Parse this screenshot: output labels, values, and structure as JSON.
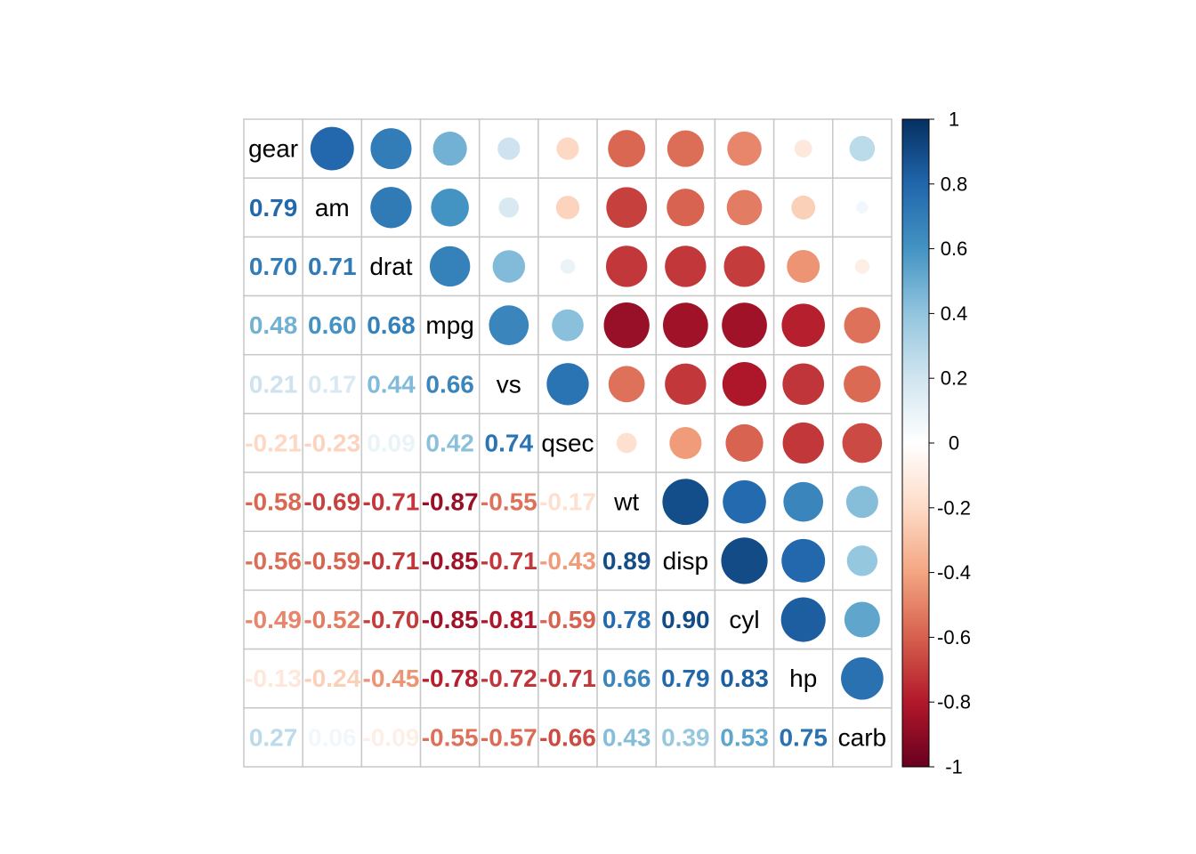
{
  "chart_data": {
    "type": "heatmap",
    "title": "",
    "xlabel": "",
    "ylabel": "",
    "variables": [
      "gear",
      "am",
      "drat",
      "mpg",
      "vs",
      "qsec",
      "wt",
      "disp",
      "cyl",
      "hp",
      "carb"
    ],
    "values": [
      [
        1.0,
        0.79,
        0.7,
        0.48,
        0.21,
        -0.21,
        -0.58,
        -0.56,
        -0.49,
        -0.13,
        0.27
      ],
      [
        0.79,
        1.0,
        0.71,
        0.6,
        0.17,
        -0.23,
        -0.69,
        -0.59,
        -0.52,
        -0.24,
        0.06
      ],
      [
        0.7,
        0.71,
        1.0,
        0.68,
        0.44,
        0.09,
        -0.71,
        -0.71,
        -0.7,
        -0.45,
        -0.09
      ],
      [
        0.48,
        0.6,
        0.68,
        1.0,
        0.66,
        0.42,
        -0.87,
        -0.85,
        -0.85,
        -0.78,
        -0.55
      ],
      [
        0.21,
        0.17,
        0.44,
        0.66,
        1.0,
        0.74,
        -0.55,
        -0.71,
        -0.81,
        -0.72,
        -0.57
      ],
      [
        -0.21,
        -0.23,
        0.09,
        0.42,
        0.74,
        1.0,
        -0.17,
        -0.43,
        -0.59,
        -0.71,
        -0.66
      ],
      [
        -0.58,
        -0.69,
        -0.71,
        -0.87,
        -0.55,
        -0.17,
        1.0,
        0.89,
        0.78,
        0.66,
        0.43
      ],
      [
        -0.56,
        -0.59,
        -0.71,
        -0.85,
        -0.71,
        -0.43,
        0.89,
        1.0,
        0.9,
        0.79,
        0.39
      ],
      [
        -0.49,
        -0.52,
        -0.7,
        -0.85,
        -0.81,
        -0.59,
        0.78,
        0.9,
        1.0,
        0.83,
        0.53
      ],
      [
        -0.13,
        -0.24,
        -0.45,
        -0.78,
        -0.72,
        -0.71,
        0.66,
        0.79,
        0.83,
        1.0,
        0.75
      ],
      [
        0.27,
        0.06,
        -0.09,
        -0.55,
        -0.57,
        -0.66,
        0.43,
        0.39,
        0.53,
        0.75,
        1.0
      ]
    ],
    "value_labels": [
      [
        "",
        "",
        "",
        "",
        "",
        "",
        "",
        "",
        "",
        "",
        ""
      ],
      [
        "0.79",
        "",
        "",
        "",
        "",
        "",
        "",
        "",
        "",
        "",
        ""
      ],
      [
        "0.70",
        "0.71",
        "",
        "",
        "",
        "",
        "",
        "",
        "",
        "",
        ""
      ],
      [
        "0.48",
        "0.60",
        "0.68",
        "",
        "",
        "",
        "",
        "",
        "",
        "",
        ""
      ],
      [
        "0.21",
        "0.17",
        "0.44",
        "0.66",
        "",
        "",
        "",
        "",
        "",
        "",
        ""
      ],
      [
        "-0.21",
        "-0.23",
        "0.09",
        "0.42",
        "0.74",
        "",
        "",
        "",
        "",
        "",
        ""
      ],
      [
        "-0.58",
        "-0.69",
        "-0.71",
        "-0.87",
        "-0.55",
        "-0.17",
        "",
        "",
        "",
        "",
        ""
      ],
      [
        "-0.56",
        "-0.59",
        "-0.71",
        "-0.85",
        "-0.71",
        "-0.43",
        "0.89",
        "",
        "",
        "",
        ""
      ],
      [
        "-0.49",
        "-0.52",
        "-0.70",
        "-0.85",
        "-0.81",
        "-0.59",
        "0.78",
        "0.90",
        "",
        "",
        ""
      ],
      [
        "-0.13",
        "-0.24",
        "-0.45",
        "-0.78",
        "-0.72",
        "-0.71",
        "0.66",
        "0.79",
        "0.83",
        "",
        ""
      ],
      [
        "0.27",
        "0.06",
        "-0.09",
        "-0.55",
        "-0.57",
        "-0.66",
        "0.43",
        "0.39",
        "0.53",
        "0.75",
        ""
      ]
    ],
    "lower_triangle": "numbers",
    "upper_triangle": "circles",
    "diagonal": "variable names",
    "grid": true,
    "legend": {
      "placement": "right",
      "ticks": [
        "1",
        "0.8",
        "0.6",
        "0.4",
        "0.2",
        "0",
        "-0.2",
        "-0.4",
        "-0.6",
        "-0.8",
        "-1"
      ],
      "range": [
        -1,
        1
      ]
    },
    "color_scale": [
      "#67001F",
      "#B2182B",
      "#D6604D",
      "#F4A582",
      "#FDDBC7",
      "#FFFFFF",
      "#D1E5F0",
      "#92C5DE",
      "#4393C3",
      "#2166AC",
      "#053061"
    ]
  }
}
